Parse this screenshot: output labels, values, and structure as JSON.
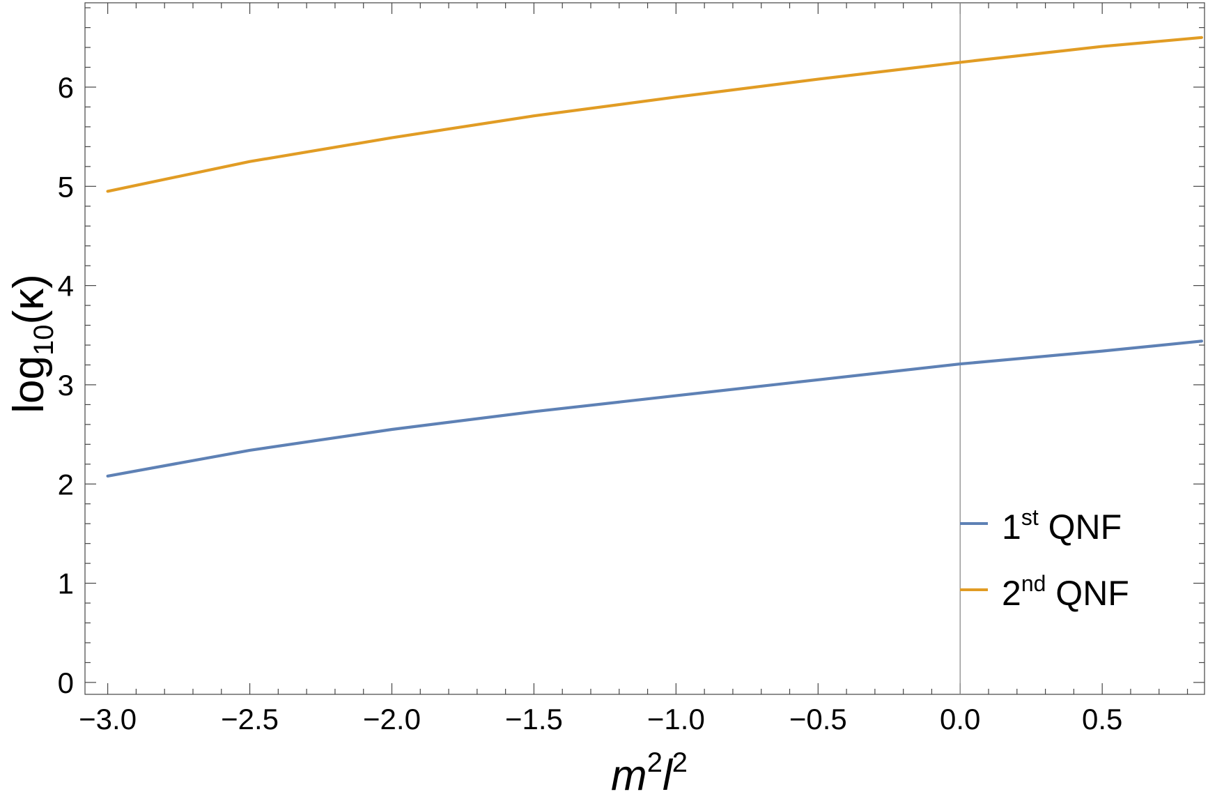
{
  "chart_data": {
    "type": "line",
    "title": "",
    "xlabel": {
      "base1": "m",
      "sup1": "2",
      "base2": "l",
      "sup2": "2"
    },
    "ylabel": {
      "func": "log",
      "sub": "10",
      "arg": "(κ)"
    },
    "xlim": [
      -3.08,
      0.86
    ],
    "ylim": [
      -0.12,
      6.85
    ],
    "x_ticks": [
      -3.0,
      -2.5,
      -2.0,
      -1.5,
      -1.0,
      -0.5,
      0.0,
      0.5
    ],
    "x_tick_labels": [
      "−3.0",
      "−2.5",
      "−2.0",
      "−1.5",
      "−1.0",
      "−0.5",
      "0.0",
      "0.5"
    ],
    "y_ticks": [
      0,
      1,
      2,
      3,
      4,
      5,
      6
    ],
    "y_tick_labels": [
      "0",
      "1",
      "2",
      "3",
      "4",
      "5",
      "6"
    ],
    "x_minor_step": 0.1,
    "y_minor_step": 0.2,
    "vertical_line_at_x": 0.0,
    "grid": false,
    "legend_position": "bottom-right",
    "series": [
      {
        "name": {
          "num": "1",
          "sup": "st",
          "rest": " QNF"
        },
        "color": "#5e81b5",
        "x": [
          -3.0,
          -2.5,
          -2.0,
          -1.5,
          -1.0,
          -0.5,
          0.0,
          0.5,
          0.85
        ],
        "y": [
          2.08,
          2.34,
          2.55,
          2.73,
          2.89,
          3.05,
          3.21,
          3.34,
          3.44
        ]
      },
      {
        "name": {
          "num": "2",
          "sup": "nd",
          "rest": " QNF"
        },
        "color": "#e19c24",
        "x": [
          -3.0,
          -2.5,
          -2.0,
          -1.5,
          -1.0,
          -0.5,
          0.0,
          0.5,
          0.85
        ],
        "y": [
          4.95,
          5.25,
          5.49,
          5.71,
          5.9,
          6.08,
          6.25,
          6.41,
          6.5
        ]
      }
    ]
  }
}
